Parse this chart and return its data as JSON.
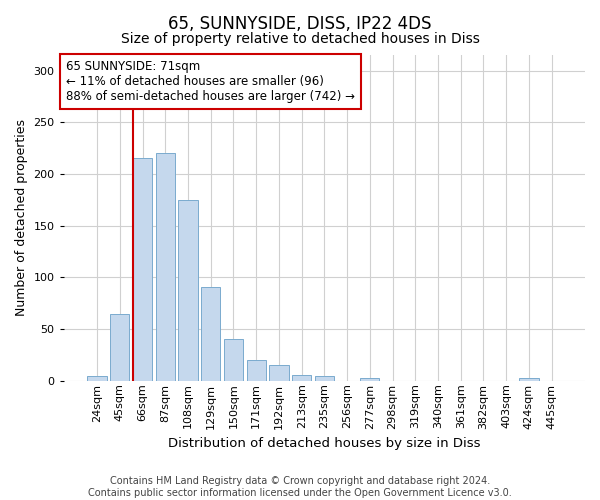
{
  "title1": "65, SUNNYSIDE, DISS, IP22 4DS",
  "title2": "Size of property relative to detached houses in Diss",
  "xlabel": "Distribution of detached houses by size in Diss",
  "ylabel": "Number of detached properties",
  "bar_labels": [
    "24sqm",
    "45sqm",
    "66sqm",
    "87sqm",
    "108sqm",
    "129sqm",
    "150sqm",
    "171sqm",
    "192sqm",
    "213sqm",
    "235sqm",
    "256sqm",
    "277sqm",
    "298sqm",
    "319sqm",
    "340sqm",
    "361sqm",
    "382sqm",
    "403sqm",
    "424sqm",
    "445sqm"
  ],
  "bar_values": [
    5,
    65,
    215,
    220,
    175,
    91,
    40,
    20,
    15,
    6,
    5,
    0,
    3,
    0,
    0,
    0,
    0,
    0,
    0,
    3,
    0
  ],
  "bar_color": "#c5d8ed",
  "bar_edge_color": "#7aabce",
  "vline_index": 2,
  "annotation_title": "65 SUNNYSIDE: 71sqm",
  "annotation_line1": "← 11% of detached houses are smaller (96)",
  "annotation_line2": "88% of semi-detached houses are larger (742) →",
  "annotation_box_color": "#ffffff",
  "annotation_box_edge": "#cc0000",
  "vline_color": "#cc0000",
  "ylim": [
    0,
    315
  ],
  "yticks": [
    0,
    50,
    100,
    150,
    200,
    250,
    300
  ],
  "grid_color": "#d0d0d0",
  "bg_color": "#ffffff",
  "footer": "Contains HM Land Registry data © Crown copyright and database right 2024.\nContains public sector information licensed under the Open Government Licence v3.0.",
  "title1_fontsize": 12,
  "title2_fontsize": 10,
  "xlabel_fontsize": 9.5,
  "ylabel_fontsize": 9,
  "tick_fontsize": 8,
  "footer_fontsize": 7,
  "ann_fontsize": 8.5
}
